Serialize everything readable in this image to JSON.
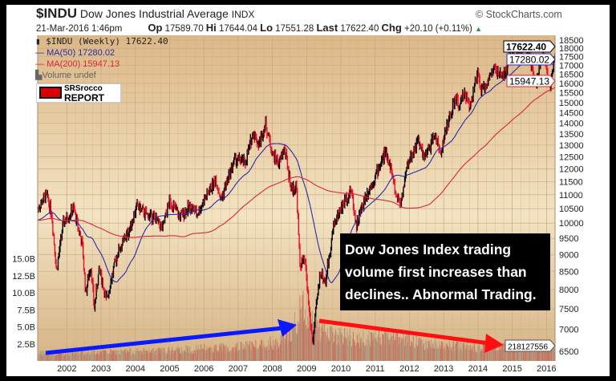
{
  "header": {
    "symbol": "$INDU",
    "name": "Dow Jones Industrial Average",
    "exchange": "INDX",
    "datetime": "21-Mar-2016 1:46pm",
    "op_label": "Op",
    "op": "17589.70",
    "hi_label": "Hi",
    "hi": "17644.04",
    "lo_label": "Lo",
    "lo": "17551.28",
    "last_label": "Last",
    "last": "17622.40",
    "chg_label": "Chg",
    "chg": "+20.10 (+0.11%)",
    "credit": "© StockCharts.com"
  },
  "legend": {
    "price": "$INDU (Weekly) 17622.40",
    "ma50": "MA(50) 17280.02",
    "ma200": "MA(200) 15947.13",
    "volume": "Volume undef"
  },
  "logo": {
    "line1": "SRSrocco",
    "line2": "REPORT"
  },
  "annotation": "Dow Jones Index trading volume first increases than declines.. Abnormal Trading.",
  "colors": {
    "up": "#000000",
    "down": "#e8102a",
    "ma50": "#2a2aa8",
    "ma200": "#d8283c",
    "volume": "#c86a5a",
    "blue_arrow": "#0a1aff",
    "red_arrow": "#ff1010"
  },
  "chart_data": {
    "type": "bar",
    "title": "$INDU Dow Jones Industrial Average (Weekly)",
    "price_axis": {
      "scale": "log",
      "range": [
        6500,
        18500
      ],
      "ticks": [
        18500,
        18000,
        17500,
        17000,
        16500,
        16000,
        15500,
        15000,
        14500,
        14000,
        13500,
        13000,
        12500,
        12000,
        11500,
        11000,
        10500,
        10000,
        9500,
        9000,
        8500,
        8000,
        7500,
        7000,
        6500
      ]
    },
    "price_flags": {
      "last": "17622.40",
      "ma50": "17280.02",
      "ma200": "15947.13",
      "volume": "218127556"
    },
    "volume_axis": {
      "unit": "B",
      "range": [
        0,
        17
      ],
      "ticks": [
        "15.0B",
        "12.5B",
        "10.0B",
        "7.5B",
        "5.0B",
        "2.5B"
      ],
      "tick_values": [
        15,
        12.5,
        10,
        7.5,
        5,
        2.5
      ]
    },
    "x_axis": {
      "range": [
        2001.15,
        2016.25
      ],
      "ticks": [
        "2002",
        "2003",
        "2004",
        "2005",
        "2006",
        "2007",
        "2008",
        "2009",
        "2010",
        "2011",
        "2012",
        "2013",
        "2014",
        "2015",
        "2016"
      ]
    },
    "price_anchors": [
      [
        2001.15,
        10500
      ],
      [
        2001.4,
        11000
      ],
      [
        2001.55,
        10400
      ],
      [
        2001.7,
        8500
      ],
      [
        2001.9,
        10000
      ],
      [
        2002.2,
        10500
      ],
      [
        2002.45,
        9300
      ],
      [
        2002.55,
        7900
      ],
      [
        2002.7,
        8700
      ],
      [
        2002.8,
        7500
      ],
      [
        2002.95,
        8600
      ],
      [
        2003.15,
        7700
      ],
      [
        2003.5,
        9100
      ],
      [
        2003.8,
        9700
      ],
      [
        2004.05,
        10600
      ],
      [
        2004.3,
        10300
      ],
      [
        2004.55,
        10200
      ],
      [
        2004.8,
        9800
      ],
      [
        2005.0,
        10800
      ],
      [
        2005.3,
        10200
      ],
      [
        2005.6,
        10600
      ],
      [
        2005.8,
        10300
      ],
      [
        2006.05,
        10900
      ],
      [
        2006.35,
        11600
      ],
      [
        2006.5,
        10800
      ],
      [
        2006.9,
        12400
      ],
      [
        2007.15,
        12300
      ],
      [
        2007.2,
        12200
      ],
      [
        2007.45,
        13600
      ],
      [
        2007.6,
        13000
      ],
      [
        2007.8,
        14000
      ],
      [
        2008.0,
        12600
      ],
      [
        2008.2,
        12200
      ],
      [
        2008.35,
        12900
      ],
      [
        2008.55,
        11200
      ],
      [
        2008.7,
        11300
      ],
      [
        2008.8,
        8700
      ],
      [
        2008.95,
        8800
      ],
      [
        2009.1,
        7200
      ],
      [
        2009.18,
        6700
      ],
      [
        2009.4,
        8500
      ],
      [
        2009.55,
        8200
      ],
      [
        2009.8,
        10000
      ],
      [
        2010.0,
        10500
      ],
      [
        2010.3,
        11200
      ],
      [
        2010.45,
        9900
      ],
      [
        2010.7,
        10900
      ],
      [
        2011.0,
        11700
      ],
      [
        2011.3,
        12700
      ],
      [
        2011.45,
        12100
      ],
      [
        2011.6,
        11000
      ],
      [
        2011.75,
        10700
      ],
      [
        2011.95,
        12200
      ],
      [
        2012.25,
        13200
      ],
      [
        2012.45,
        12400
      ],
      [
        2012.75,
        13500
      ],
      [
        2012.9,
        12600
      ],
      [
        2013.1,
        13900
      ],
      [
        2013.35,
        15200
      ],
      [
        2013.48,
        14800
      ],
      [
        2013.6,
        15600
      ],
      [
        2013.75,
        14800
      ],
      [
        2014.0,
        16500
      ],
      [
        2014.1,
        15500
      ],
      [
        2014.5,
        16900
      ],
      [
        2014.6,
        16400
      ],
      [
        2014.8,
        16500
      ],
      [
        2014.95,
        17900
      ],
      [
        2015.1,
        17500
      ],
      [
        2015.35,
        18200
      ],
      [
        2015.5,
        17600
      ],
      [
        2015.65,
        16000
      ],
      [
        2015.75,
        16300
      ],
      [
        2015.9,
        17800
      ],
      [
        2016.05,
        16300
      ],
      [
        2016.12,
        15800
      ],
      [
        2016.22,
        17622
      ]
    ],
    "volume_anchors": [
      [
        2001.15,
        1.2
      ],
      [
        2003.0,
        1.4
      ],
      [
        2005.0,
        1.7
      ],
      [
        2007.0,
        2.3
      ],
      [
        2008.3,
        3.2
      ],
      [
        2008.75,
        6.5
      ],
      [
        2008.85,
        9
      ],
      [
        2009.2,
        6.5
      ],
      [
        2009.5,
        4.5
      ],
      [
        2010.5,
        3.5
      ],
      [
        2011.6,
        4
      ],
      [
        2012.5,
        2.8
      ],
      [
        2014.0,
        2.2
      ],
      [
        2016.0,
        2.4
      ],
      [
        2016.25,
        2.2
      ]
    ]
  }
}
